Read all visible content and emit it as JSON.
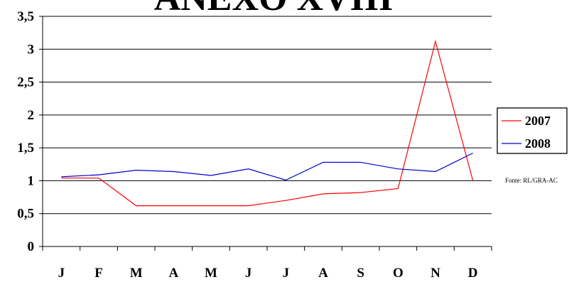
{
  "chart_data": {
    "type": "line",
    "title": "ANEXO XVIII",
    "categories": [
      "J",
      "F",
      "M",
      "A",
      "M",
      "J",
      "J",
      "A",
      "S",
      "O",
      "N",
      "D"
    ],
    "series": [
      {
        "name": "2007",
        "color": "#ff0000",
        "values": [
          1.04,
          1.04,
          0.62,
          0.62,
          0.62,
          0.62,
          0.7,
          0.8,
          0.82,
          0.88,
          3.12,
          1.0
        ]
      },
      {
        "name": "2008",
        "color": "#0000cc",
        "values": [
          1.06,
          1.09,
          1.16,
          1.14,
          1.08,
          1.18,
          1.01,
          1.28,
          1.28,
          1.18,
          1.14,
          1.42
        ]
      }
    ],
    "yticks": [
      "0",
      "0,5",
      "1",
      "1,5",
      "2",
      "2,5",
      "3",
      "3,5"
    ],
    "ylim": [
      0,
      3.5
    ],
    "grid": "horizontal",
    "legend": "right",
    "source": "Fonte: RL/GRA-AC"
  }
}
